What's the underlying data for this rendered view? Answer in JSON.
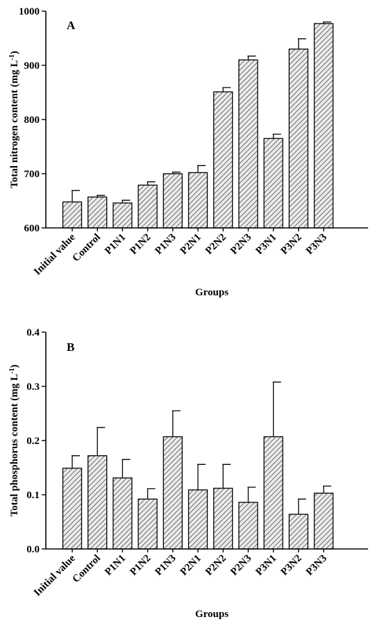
{
  "chart_data": [
    {
      "type": "bar",
      "panel": "A",
      "title": "",
      "xlabel": "Groups",
      "ylabel": "Total nitrogen content (mg L",
      "ylabel_sup": "-1",
      "ylabel_end": ")",
      "ylim": [
        600,
        1000
      ],
      "yticks": [
        600,
        700,
        800,
        900,
        1000
      ],
      "categories": [
        "Initial value",
        "Control",
        "P1N1",
        "P1N2",
        "P1N3",
        "P2N1",
        "P2N2",
        "P2N3",
        "P3N1",
        "P3N2",
        "P3N3"
      ],
      "values": [
        648,
        657,
        646,
        679,
        700,
        702,
        851,
        910,
        765,
        930,
        977
      ],
      "errors": [
        21,
        3,
        5,
        6,
        3,
        13,
        8,
        7,
        8,
        19,
        3
      ],
      "bar_fill": "hatched-gray",
      "grid": false,
      "legend": "none"
    },
    {
      "type": "bar",
      "panel": "B",
      "title": "",
      "xlabel": "Groups",
      "ylabel": "Total phosphorus content (mg L",
      "ylabel_sup": "-1",
      "ylabel_end": ")",
      "ylim": [
        0.0,
        0.4
      ],
      "yticks": [
        "0.0",
        "0.1",
        "0.2",
        "0.3",
        "0.4"
      ],
      "categories": [
        "Initial value",
        "Control",
        "P1N1",
        "P1N2",
        "P1N3",
        "P2N1",
        "P2N2",
        "P2N3",
        "P3N1",
        "P3N2",
        "P3N3"
      ],
      "values": [
        0.149,
        0.172,
        0.131,
        0.092,
        0.207,
        0.109,
        0.112,
        0.086,
        0.207,
        0.064,
        0.103
      ],
      "errors": [
        0.023,
        0.052,
        0.034,
        0.019,
        0.048,
        0.047,
        0.044,
        0.028,
        0.101,
        0.028,
        0.013
      ],
      "bar_fill": "hatched-gray",
      "grid": false,
      "legend": "none"
    }
  ]
}
